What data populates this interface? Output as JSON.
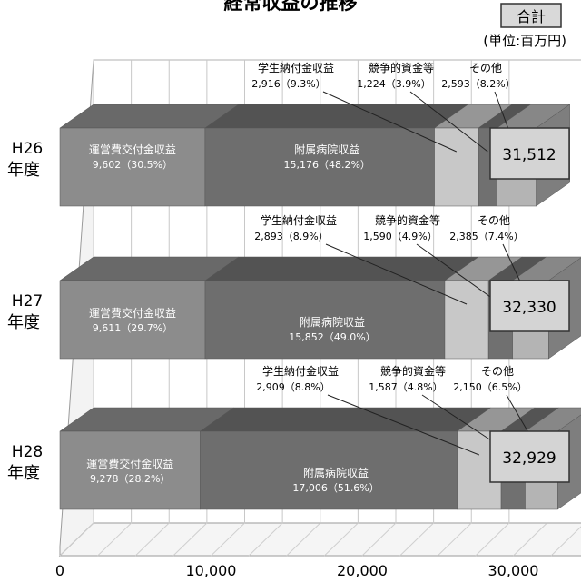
{
  "chart_data": {
    "type": "bar",
    "stacked": true,
    "orientation": "horizontal",
    "title": "経常収益の推移",
    "unit_label": "(単位:百万円)",
    "total_header": "合計",
    "categories": [
      {
        "line1": "H26",
        "line2": "年度"
      },
      {
        "line1": "H27",
        "line2": "年度"
      },
      {
        "line1": "H28",
        "line2": "年度"
      }
    ],
    "series": [
      {
        "name": "運営費交付金収益",
        "values": [
          9602,
          9611,
          9278
        ],
        "percents": [
          "30.5%",
          "29.7%",
          "28.2%"
        ],
        "color": "#8c8c8c"
      },
      {
        "name": "附属病院収益",
        "values": [
          15176,
          15852,
          17006
        ],
        "percents": [
          "48.2%",
          "49.0%",
          "51.6%"
        ],
        "color": "#6e6e6e"
      },
      {
        "name": "学生納付金収益",
        "values": [
          2916,
          2893,
          2909
        ],
        "percents": [
          "9.3%",
          "8.9%",
          "8.8%"
        ],
        "color": "#c8c8c8"
      },
      {
        "name": "競争的資金等",
        "values": [
          1224,
          1590,
          1587
        ],
        "percents": [
          "3.9%",
          "4.9%",
          "4.8%"
        ],
        "color": "#707070"
      },
      {
        "name": "その他",
        "values": [
          2593,
          2385,
          2150
        ],
        "percents": [
          "8.2%",
          "7.4%",
          "6.5%"
        ],
        "color": "#b4b4b4"
      }
    ],
    "value_labels": [
      [
        "9,602",
        "15,176",
        "2,916",
        "1,224",
        "2,593"
      ],
      [
        "9,611",
        "15,852",
        "2,893",
        "1,590",
        "2,385"
      ],
      [
        "9,278",
        "17,006",
        "2,909",
        "1,587",
        "2,150"
      ]
    ],
    "totals": [
      "31,512",
      "32,330",
      "32,929"
    ],
    "xlim": [
      0,
      35000
    ],
    "xticks": [
      0,
      10000,
      20000,
      30000
    ],
    "xtick_labels": [
      "0",
      "10,000",
      "20,000",
      "30,000"
    ],
    "grid": true,
    "three_d": true
  }
}
